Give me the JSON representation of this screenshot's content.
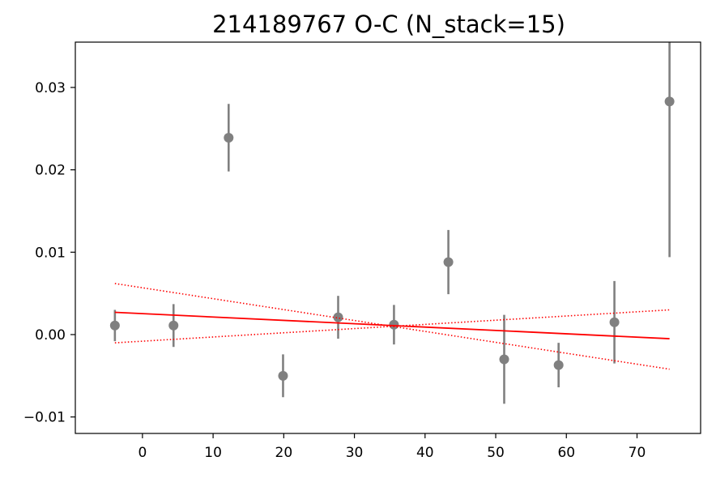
{
  "chart_data": {
    "type": "scatter",
    "title": "214189767 O-C (N_stack=15)",
    "xlabel": "",
    "ylabel": "",
    "xlim": [
      -9.5,
      79.0
    ],
    "ylim": [
      -0.012,
      0.0355
    ],
    "x_ticks": [
      0,
      10,
      20,
      30,
      40,
      50,
      60,
      70
    ],
    "x_tick_labels": [
      "0",
      "10",
      "20",
      "30",
      "40",
      "50",
      "60",
      "70"
    ],
    "y_ticks": [
      -0.01,
      0.0,
      0.01,
      0.02,
      0.03
    ],
    "y_tick_labels": [
      "−0.01",
      "0.00",
      "0.01",
      "0.02",
      "0.03"
    ],
    "grid": false,
    "series": [
      {
        "kind": "errorbar",
        "color": "#808080",
        "points": [
          {
            "x": -3.9,
            "y": 0.0011,
            "err": 0.0019
          },
          {
            "x": 4.4,
            "y": 0.0011,
            "err": 0.0026
          },
          {
            "x": 12.2,
            "y": 0.0239,
            "err": 0.0041
          },
          {
            "x": 19.9,
            "y": -0.005,
            "err": 0.0026
          },
          {
            "x": 27.7,
            "y": 0.0021,
            "err": 0.0026
          },
          {
            "x": 35.6,
            "y": 0.0012,
            "err": 0.0024
          },
          {
            "x": 43.3,
            "y": 0.0088,
            "err": 0.0039
          },
          {
            "x": 51.2,
            "y": -0.003,
            "err": 0.0054
          },
          {
            "x": 58.9,
            "y": -0.0037,
            "err": 0.0027
          },
          {
            "x": 66.8,
            "y": 0.0015,
            "err": 0.005
          },
          {
            "x": 74.6,
            "y": 0.0283,
            "err": 0.0189
          }
        ]
      },
      {
        "kind": "line",
        "style": "solid",
        "color": "#ff0000",
        "x": [
          -3.9,
          74.6
        ],
        "y": [
          0.0027,
          -0.0005
        ]
      },
      {
        "kind": "line",
        "style": "dotted",
        "color": "#ff0000",
        "x": [
          -3.9,
          74.6
        ],
        "y": [
          0.0062,
          -0.0042
        ]
      },
      {
        "kind": "line",
        "style": "dotted",
        "color": "#ff0000",
        "x": [
          -3.9,
          74.6
        ],
        "y": [
          -0.001,
          0.003
        ]
      }
    ]
  }
}
